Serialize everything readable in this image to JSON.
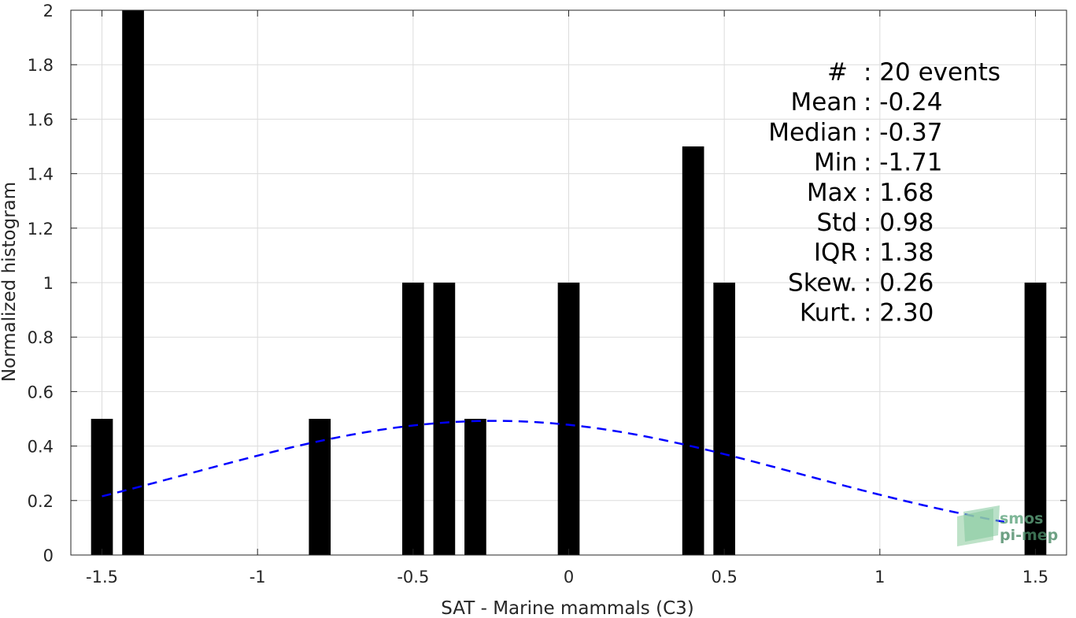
{
  "chart_data": {
    "type": "bar",
    "xlabel": "SAT - Marine mammals (C3)",
    "ylabel": "Normalized histogram",
    "xlim": [
      -1.6,
      1.6
    ],
    "ylim": [
      0,
      2
    ],
    "grid": true,
    "x_ticks": [
      -1.5,
      -1,
      -0.5,
      0,
      0.5,
      1,
      1.5
    ],
    "x_tick_labels": [
      "-1.5",
      "-1",
      "-0.5",
      "0",
      "0.5",
      "1",
      "1.5"
    ],
    "y_ticks": [
      0,
      0.2,
      0.4,
      0.6,
      0.8,
      1,
      1.2,
      1.4,
      1.6,
      1.8,
      2
    ],
    "y_tick_labels": [
      "0",
      "0.2",
      "0.4",
      "0.6",
      "0.8",
      "1",
      "1.2",
      "1.4",
      "1.6",
      "1.8",
      "2"
    ],
    "bar_width": 0.07,
    "bars": [
      {
        "x": -1.5,
        "value": 0.5
      },
      {
        "x": -1.4,
        "value": 2.0
      },
      {
        "x": -0.8,
        "value": 0.5
      },
      {
        "x": -0.5,
        "value": 1.0
      },
      {
        "x": -0.4,
        "value": 1.0
      },
      {
        "x": -0.3,
        "value": 0.5
      },
      {
        "x": 0.0,
        "value": 1.0
      },
      {
        "x": 0.4,
        "value": 1.5
      },
      {
        "x": 0.5,
        "value": 1.0
      },
      {
        "x": 1.5,
        "value": 1.0
      }
    ],
    "fit_curve": {
      "style": "dashed",
      "color": "#0000ff",
      "distribution": "normal",
      "mean": -0.24,
      "std": 0.98,
      "scale": 1.21,
      "x_range": [
        -1.5,
        1.4
      ]
    },
    "bar_color": "#000000",
    "stats": [
      {
        "label": "#",
        "value": ": 20 events"
      },
      {
        "label": "Mean",
        "value": ": -0.24"
      },
      {
        "label": "Median",
        "value": ": -0.37"
      },
      {
        "label": "Min",
        "value": ": -1.71"
      },
      {
        "label": "Max",
        "value": ": 1.68"
      },
      {
        "label": "Std",
        "value": ": 0.98"
      },
      {
        "label": "IQR",
        "value": ": 1.38"
      },
      {
        "label": "Skew.",
        "value": ": 0.26"
      },
      {
        "label": "Kurt.",
        "value": ": 2.30"
      }
    ]
  },
  "watermark": {
    "line1": "smos",
    "line2": "pi-mep",
    "color": "#5fa47e"
  }
}
